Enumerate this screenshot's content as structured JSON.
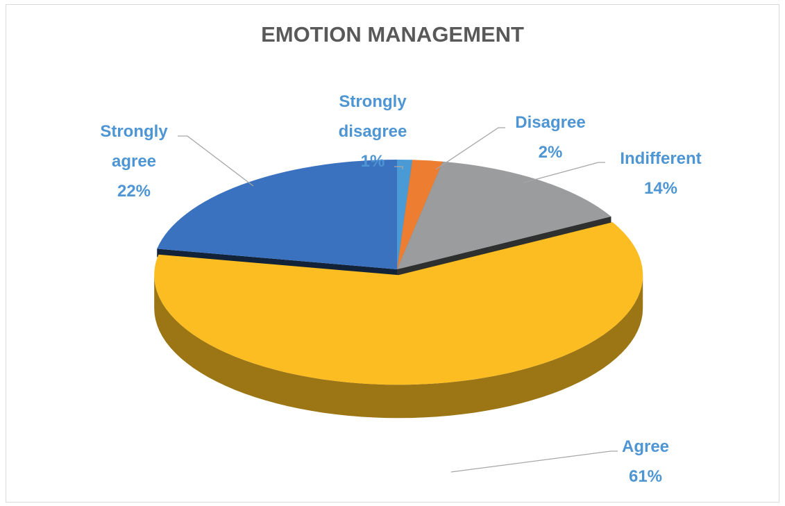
{
  "chart_data": {
    "type": "pie",
    "title": "EMOTION MANAGEMENT",
    "categories": [
      "Strongly disagree",
      "Disagree",
      "Indifferent",
      "Agree",
      "Strongly agree"
    ],
    "values": [
      1,
      2,
      14,
      61,
      22
    ],
    "value_labels": [
      "1%",
      "2%",
      "14%",
      "61%",
      "22%"
    ],
    "colors": [
      "#4a9ad6",
      "#ed7d31",
      "#9a9c9d",
      "#fbbd22",
      "#3a72bf"
    ]
  }
}
